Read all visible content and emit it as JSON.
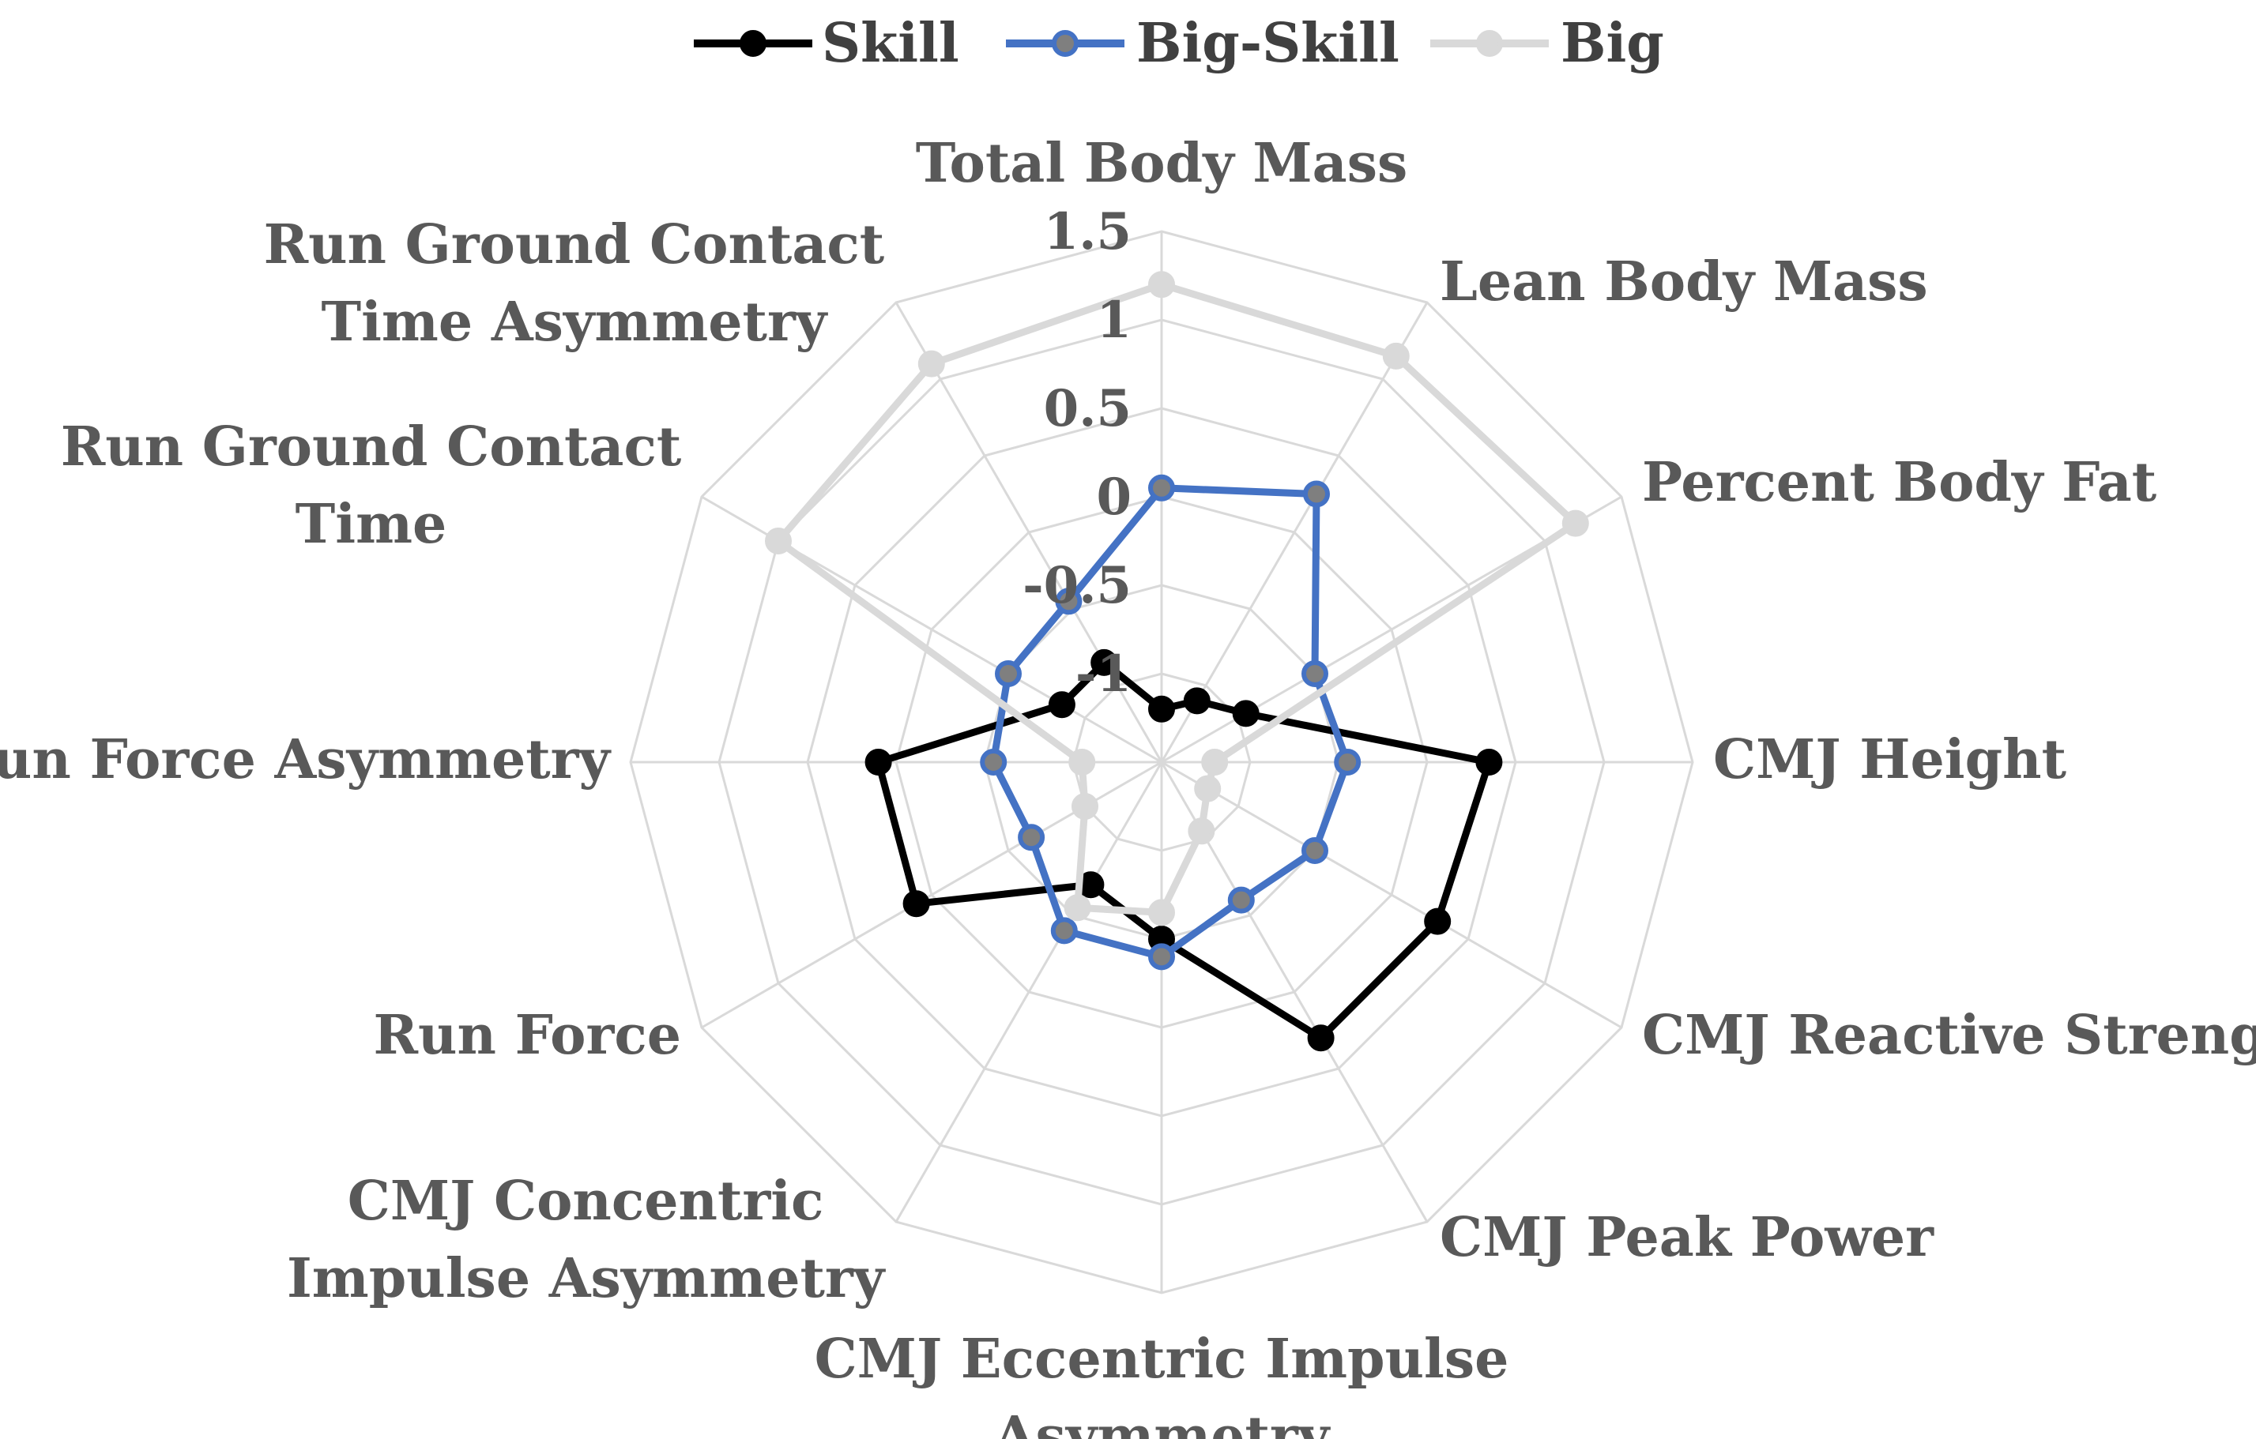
{
  "chart_data": {
    "type": "radar",
    "title": "",
    "categories": [
      "Total Body Mass",
      "Lean Body Mass",
      "Percent Body Fat",
      "CMJ Height",
      "CMJ Reactive Strength",
      "CMJ Peak Power",
      "CMJ Eccentric Impulse Asymmetry",
      "CMJ Concentric Impulse Asymmetry",
      "Run Force",
      "Run Force Asymmetry",
      "Run Ground Contact Time",
      "Run Ground Contact Time Asymmetry"
    ],
    "category_label_lines": [
      [
        "Total Body Mass"
      ],
      [
        "Lean Body Mass"
      ],
      [
        "Percent Body Fat"
      ],
      [
        "CMJ Height"
      ],
      [
        "CMJ Reactive Strength"
      ],
      [
        "CMJ Peak Power"
      ],
      [
        "CMJ Eccentric Impulse",
        "Asymmetry"
      ],
      [
        "CMJ Concentric",
        "Impulse Asymmetry"
      ],
      [
        "Run Force"
      ],
      [
        "Run Force Asymmetry"
      ],
      [
        "Run Ground Contact",
        "Time"
      ],
      [
        "Run Ground Contact",
        "Time Asymmetry"
      ]
    ],
    "rlim": [
      -1.5,
      1.5
    ],
    "ticks": [
      1.5,
      1,
      0.5,
      0,
      -0.5,
      -1
    ],
    "tick_labels": [
      "1.5",
      "1",
      "0.5",
      "0",
      "-0.5",
      "-1"
    ],
    "grid": true,
    "legend_position": "top",
    "series": [
      {
        "name": "Skill",
        "color": "#000000",
        "marker_color": "#000000",
        "values": [
          -1.2,
          -1.1,
          -0.95,
          0.35,
          0.3,
          0.3,
          -0.5,
          -0.7,
          0.1,
          0.1,
          -0.85,
          -0.85
        ]
      },
      {
        "name": "Big-Skill",
        "color": "#4472C4",
        "marker_color": "#7F7F7F",
        "values": [
          0.05,
          0.25,
          -0.5,
          -0.45,
          -0.5,
          -0.6,
          -0.4,
          -0.4,
          -0.65,
          -0.55,
          -0.5,
          -0.45
        ]
      },
      {
        "name": "Big",
        "color": "#D9D9D9",
        "marker_color": "#D9D9D9",
        "values": [
          1.2,
          1.15,
          1.2,
          -1.2,
          -1.2,
          -1.05,
          -0.65,
          -0.55,
          -1.0,
          -1.05,
          1.0,
          1.1
        ]
      }
    ]
  }
}
